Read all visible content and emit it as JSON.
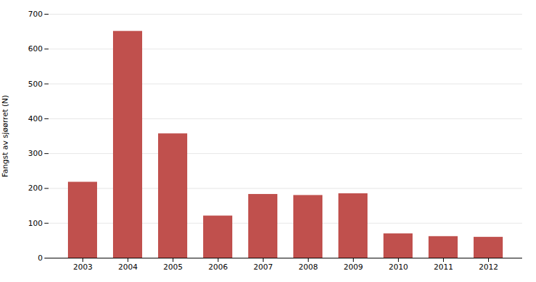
{
  "chart_data": {
    "type": "bar",
    "ylabel": "Fangst av sjøørret (N)",
    "categories": [
      "2003",
      "2004",
      "2005",
      "2006",
      "2007",
      "2008",
      "2009",
      "2010",
      "2011",
      "2012"
    ],
    "values": [
      218,
      651,
      357,
      121,
      183,
      180,
      185,
      70,
      62,
      60
    ],
    "color": "#c0504d",
    "ylim": [
      0,
      700
    ],
    "yticks": [
      0,
      100,
      200,
      300,
      400,
      500,
      600,
      700
    ],
    "grid": true
  }
}
